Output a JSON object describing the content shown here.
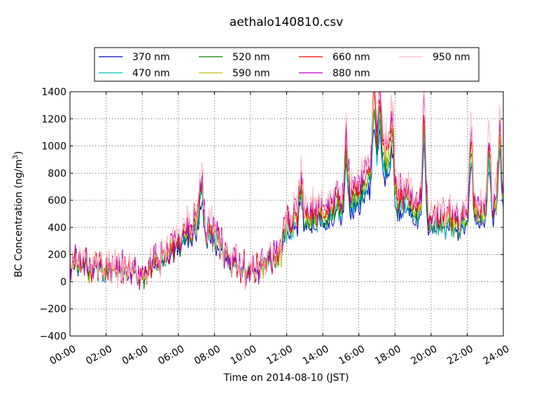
{
  "chart_data": {
    "type": "line",
    "title": "aethalo140810.csv",
    "xlabel": "Time on 2014-08-10 (JST)",
    "ylabel_main": "BC Concentration (ng/m",
    "ylabel_sup": "3",
    "ylabel_close": ")",
    "x_unit": "hours",
    "xlim": [
      0,
      24
    ],
    "ylim": [
      -400,
      1400
    ],
    "x_ticks": [
      0,
      2,
      4,
      6,
      8,
      10,
      12,
      14,
      16,
      18,
      20,
      22,
      24
    ],
    "x_tick_labels": [
      "00:00",
      "02:00",
      "04:00",
      "06:00",
      "08:00",
      "10:00",
      "12:00",
      "14:00",
      "16:00",
      "18:00",
      "20:00",
      "22:00",
      "24:00"
    ],
    "y_ticks": [
      -400,
      -200,
      0,
      200,
      400,
      600,
      800,
      1000,
      1200,
      1400
    ],
    "y_tick_labels": [
      "−400",
      "−200",
      "0",
      "200",
      "400",
      "600",
      "800",
      "1000",
      "1200",
      "1400"
    ],
    "grid": true,
    "legend_position": "top-center",
    "legend_columns": 4,
    "series": [
      {
        "name": "370 nm",
        "color": "#0000cc"
      },
      {
        "name": "470 nm",
        "color": "#00bfbf"
      },
      {
        "name": "520 nm",
        "color": "#008000"
      },
      {
        "name": "590 nm",
        "color": "#bfbf00"
      },
      {
        "name": "660 nm",
        "color": "#ff0000"
      },
      {
        "name": "880 nm",
        "color": "#bf00bf"
      },
      {
        "name": "950 nm",
        "color": "#ffb6c1"
      }
    ],
    "trend": [
      [
        0,
        120
      ],
      [
        1,
        100
      ],
      [
        2,
        80
      ],
      [
        3,
        60
      ],
      [
        4,
        40
      ],
      [
        5,
        120
      ],
      [
        6,
        250
      ],
      [
        7,
        380
      ],
      [
        8,
        280
      ],
      [
        9,
        100
      ],
      [
        10,
        60
      ],
      [
        11,
        120
      ],
      [
        11.7,
        200
      ],
      [
        12,
        350
      ],
      [
        13,
        400
      ],
      [
        14,
        450
      ],
      [
        15,
        500
      ],
      [
        16,
        560
      ],
      [
        17,
        700
      ],
      [
        17.5,
        800
      ],
      [
        18,
        520
      ],
      [
        19,
        480
      ],
      [
        20,
        380
      ],
      [
        21,
        360
      ],
      [
        22,
        400
      ],
      [
        23,
        430
      ],
      [
        24,
        520
      ]
    ],
    "peaks": [
      [
        16.85,
        930
      ],
      [
        17.15,
        620
      ],
      [
        17.85,
        650
      ],
      [
        19.6,
        1000
      ],
      [
        22.2,
        900
      ],
      [
        23.2,
        680
      ],
      [
        23.8,
        750
      ],
      [
        7.3,
        520
      ],
      [
        12.8,
        480
      ],
      [
        15.3,
        560
      ]
    ],
    "noise_amplitude": 120,
    "points_per_hour": 20
  }
}
